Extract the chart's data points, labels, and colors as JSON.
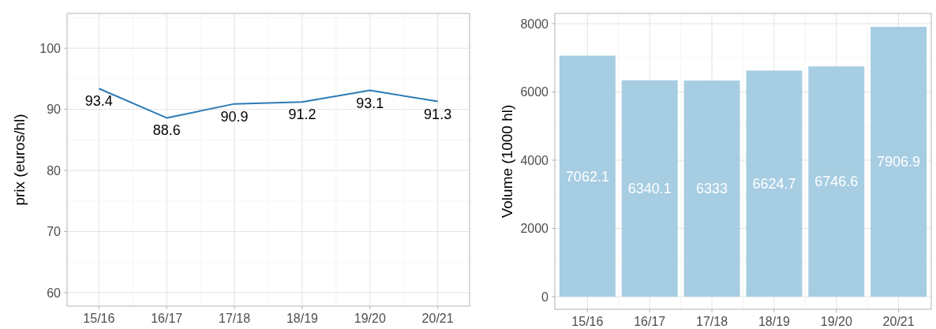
{
  "chart_data": [
    {
      "type": "line",
      "ylabel": "prix (euros/hl)",
      "categories": [
        "15/16",
        "16/17",
        "17/18",
        "18/19",
        "19/20",
        "20/21"
      ],
      "series": [
        {
          "color": "#2c7bb6",
          "values": [
            93.4,
            88.6,
            90.9,
            91.2,
            93.1,
            91.3
          ]
        }
      ],
      "ylim": [
        57.8,
        105.7
      ],
      "yticks": [
        60,
        70,
        80,
        90,
        100
      ],
      "grid": true,
      "data_labels": true,
      "line_style": "solid",
      "marker": "none"
    },
    {
      "type": "bar",
      "ylabel": "Volume (1000 hl)",
      "categories": [
        "15/16",
        "16/17",
        "17/18",
        "18/19",
        "19/20",
        "20/21"
      ],
      "series": [
        {
          "color": "#a6cde2",
          "values": [
            7062.1,
            6340.1,
            6333,
            6624.7,
            6746.6,
            7906.9
          ]
        }
      ],
      "ylim": [
        -370,
        8300
      ],
      "yticks": [
        0,
        2000,
        4000,
        6000,
        8000
      ],
      "grid": true,
      "data_labels": true
    }
  ]
}
